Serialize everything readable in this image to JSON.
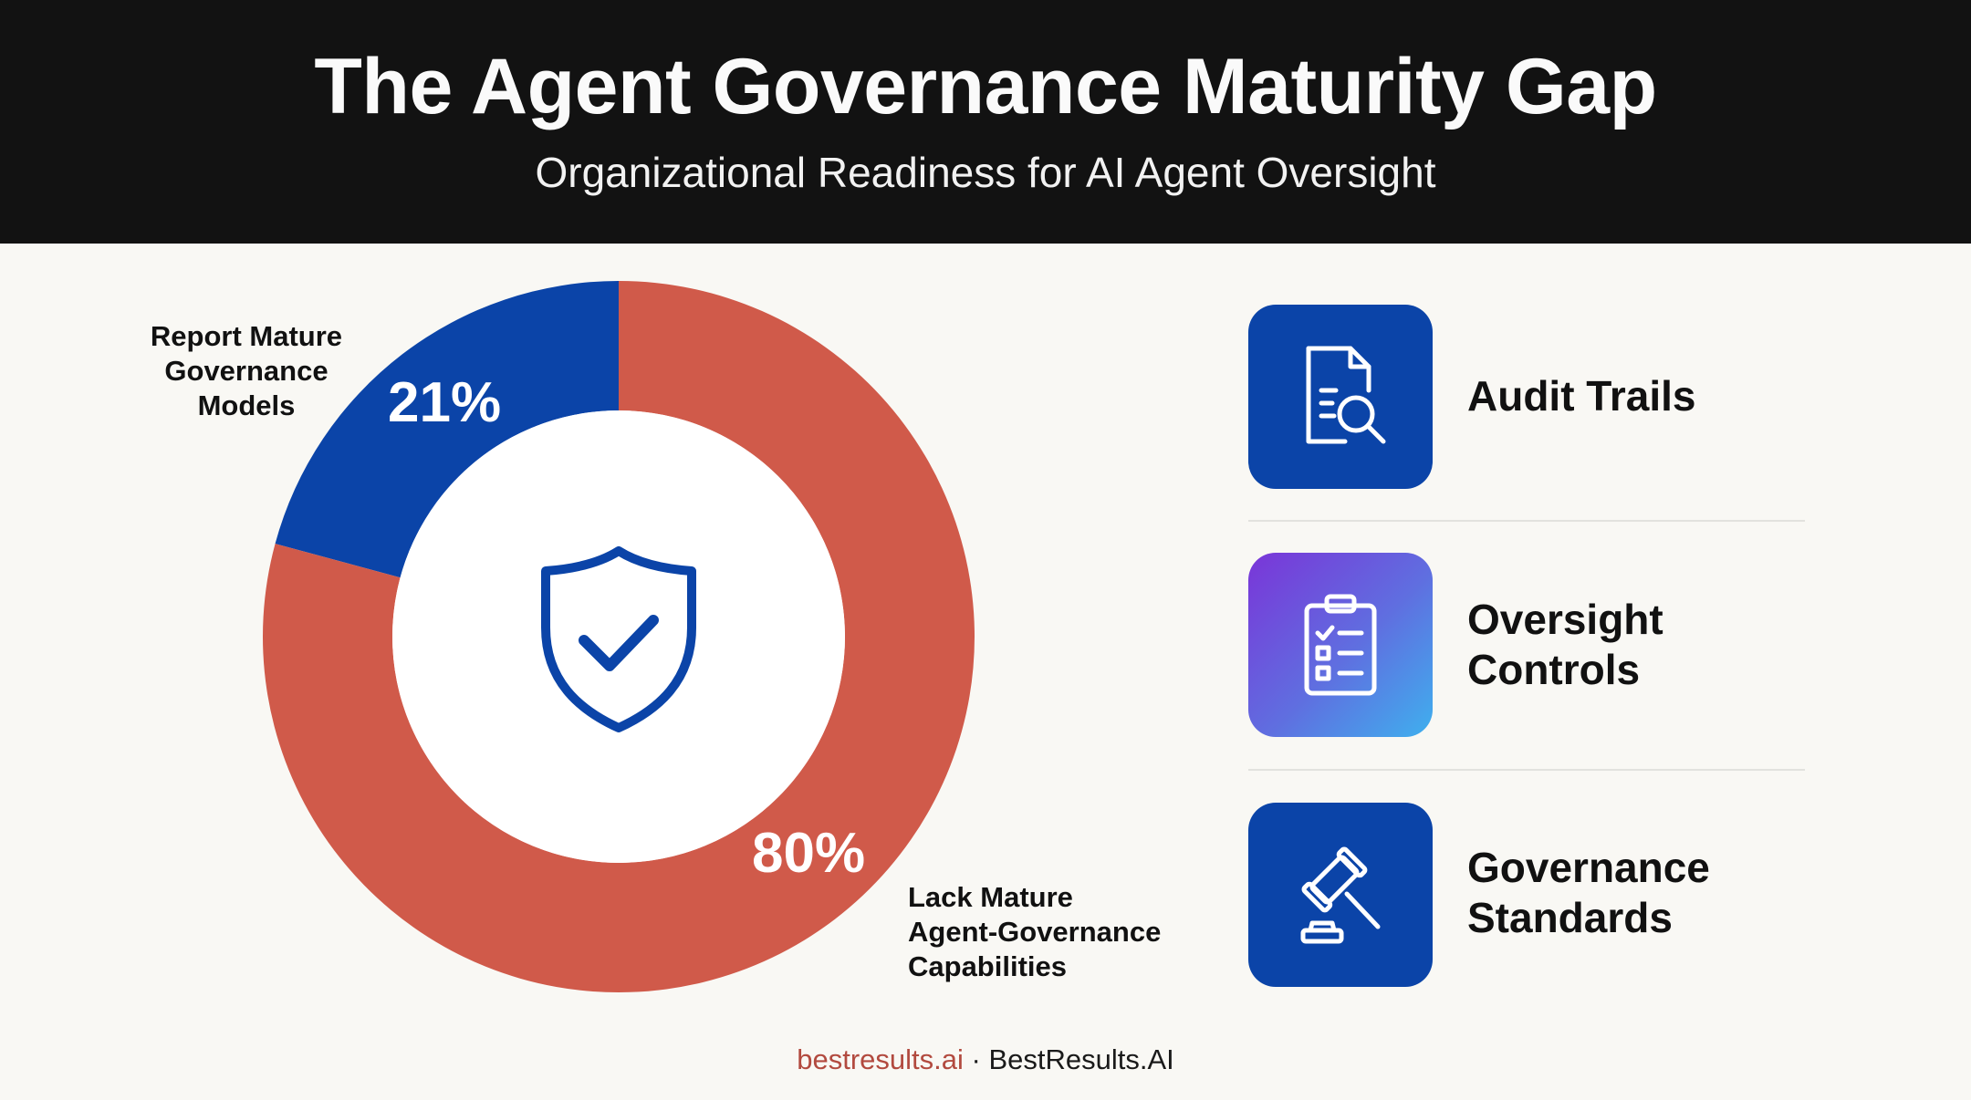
{
  "header": {
    "title": "The Agent Governance Maturity Gap",
    "subtitle": "Organizational Readiness for AI Agent Oversight"
  },
  "chart_data": {
    "type": "pie",
    "categories": [
      "Report Mature Governance Models",
      "Lack Mature Agent-Governance Capabilities"
    ],
    "values": [
      21,
      80
    ],
    "labels": [
      "21%",
      "80%"
    ],
    "colors": [
      "#0b44a8",
      "#d05a4a"
    ],
    "center_icon": "shield-check-icon"
  },
  "segments": {
    "mature": {
      "label_lines": [
        "Report Mature",
        "Governance",
        "Models"
      ],
      "pct": "21%"
    },
    "lack": {
      "label_lines": [
        "Lack Mature",
        "Agent-Governance",
        "Capabilities"
      ],
      "pct": "80%"
    }
  },
  "features": [
    {
      "icon": "document-search-icon",
      "lines": [
        "Audit Trails"
      ]
    },
    {
      "icon": "clipboard-checklist-icon",
      "lines": [
        "Oversight",
        "Controls"
      ]
    },
    {
      "icon": "gavel-icon",
      "lines": [
        "Governance",
        "Standards"
      ]
    }
  ],
  "footer": {
    "domain": "bestresults.ai",
    "separator": " · ",
    "brand": "BestResults.AI"
  },
  "colors": {
    "header_bg": "#121212",
    "page_bg": "#f9f8f4",
    "mature": "#0b44a8",
    "lack": "#d05a4a",
    "footer_domain": "#b24a3f"
  }
}
